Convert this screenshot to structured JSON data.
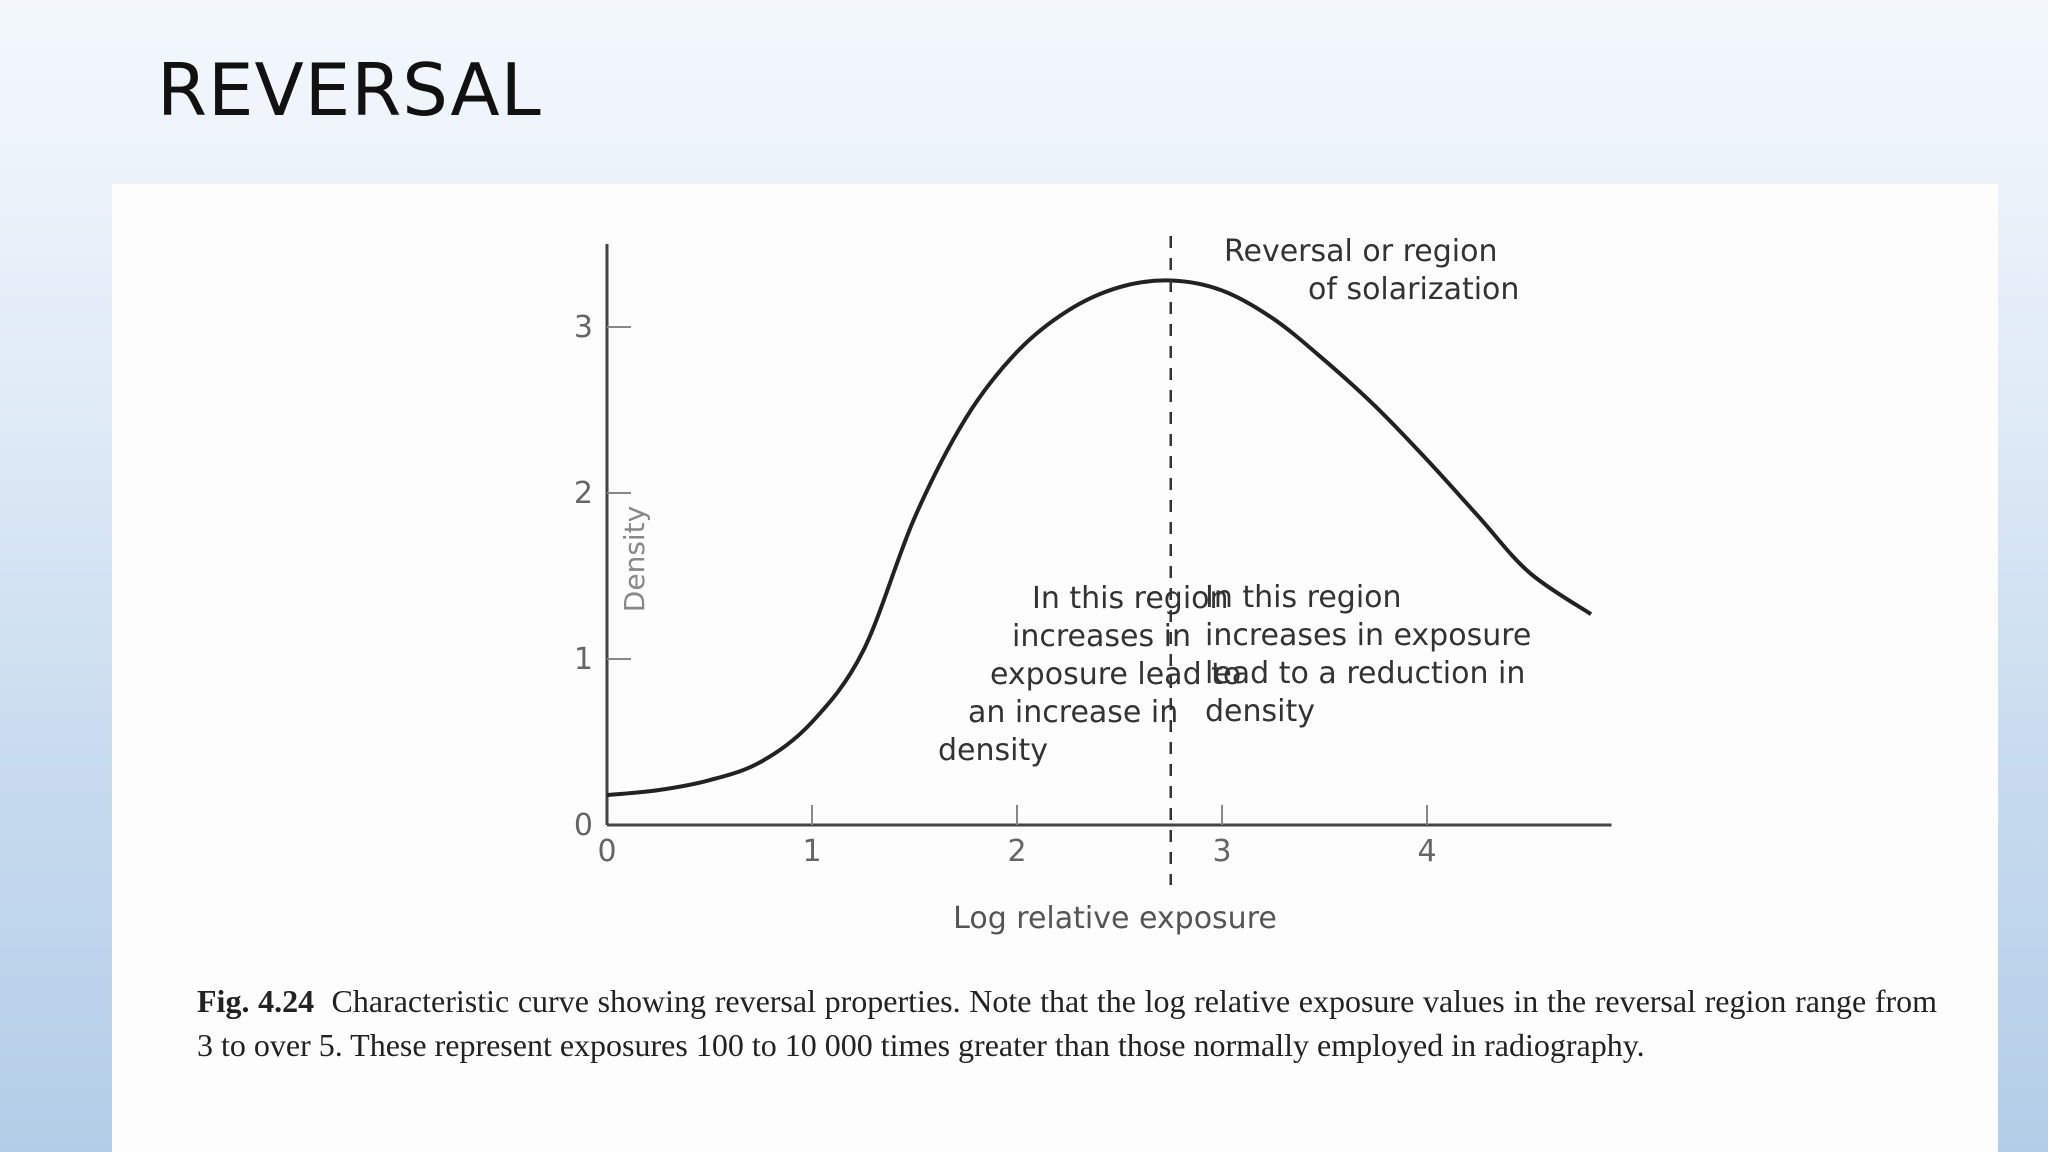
{
  "slide": {
    "title": "REVERSAL"
  },
  "caption": {
    "label": "Fig. 4.24",
    "text": "Characteristic curve showing reversal properties. Note that the log relative exposure values in the reversal region range from 3 to over 5. These represent exposures 100 to 10 000 times greater than those normally employed in radiography."
  },
  "chart_data": {
    "type": "line",
    "xlabel": "Log relative exposure",
    "ylabel": "Density",
    "xlim": [
      0,
      4.9
    ],
    "ylim": [
      0,
      3.5
    ],
    "xticks": [
      0,
      1,
      2,
      3,
      4
    ],
    "yticks": [
      0,
      1,
      2,
      3
    ],
    "grid": false,
    "series": [
      {
        "x": [
          0,
          0.25,
          0.5,
          0.75,
          1.0,
          1.25,
          1.5,
          1.75,
          2.0,
          2.25,
          2.5,
          2.75,
          3.0,
          3.25,
          3.5,
          3.75,
          4.0,
          4.25,
          4.5,
          4.8
        ],
        "y": [
          0.18,
          0.21,
          0.27,
          0.38,
          0.62,
          1.05,
          1.85,
          2.45,
          2.85,
          3.1,
          3.24,
          3.28,
          3.22,
          3.05,
          2.8,
          2.52,
          2.2,
          1.86,
          1.52,
          1.27
        ]
      }
    ],
    "divider_x": 2.75,
    "annotations": [
      {
        "id": "reversal",
        "lines": [
          "Reversal or region",
          "of solarization"
        ]
      },
      {
        "id": "left-region",
        "lines": [
          "In this region",
          "increases in",
          "exposure lead to",
          "an increase in",
          "density"
        ]
      },
      {
        "id": "right-region",
        "lines": [
          "In this region",
          "increases in exposure",
          "lead to a reduction in",
          "density"
        ]
      }
    ]
  }
}
